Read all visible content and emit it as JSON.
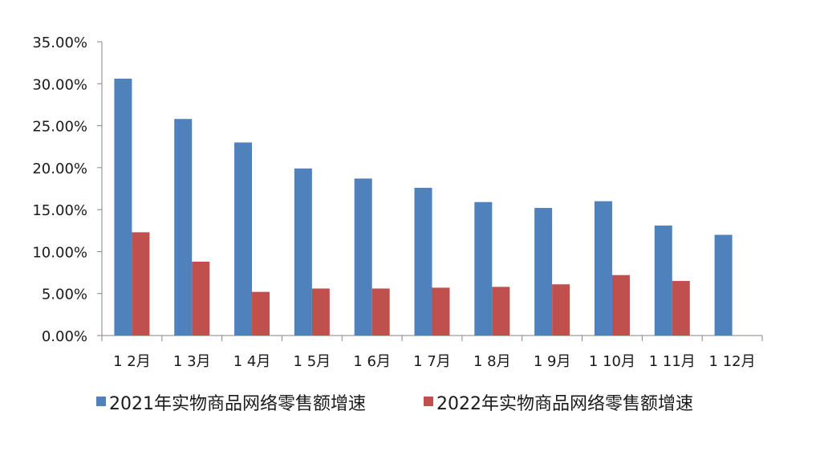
{
  "chart_data": {
    "type": "bar",
    "categories": [
      "1 2月",
      "1 3月",
      "1 4月",
      "1 5月",
      "1 6月",
      "1 7月",
      "1 8月",
      "1 9月",
      "1 10月",
      "1 11月",
      "1 12月"
    ],
    "series": [
      {
        "name": "2021年实物商品网络零售额增速",
        "color": "#4f81bd",
        "values": [
          30.6,
          25.8,
          23.0,
          19.9,
          18.7,
          17.6,
          15.9,
          15.2,
          16.0,
          13.1,
          12.0
        ]
      },
      {
        "name": "2022年实物商品网络零售额增速",
        "color": "#c0504d",
        "values": [
          12.3,
          8.8,
          5.2,
          5.6,
          5.6,
          5.7,
          5.8,
          6.1,
          7.2,
          6.5,
          null
        ]
      }
    ],
    "y_ticks": [
      "0.00%",
      "5.00%",
      "10.00%",
      "15.00%",
      "20.00%",
      "25.00%",
      "30.00%",
      "35.00%"
    ],
    "ylim": [
      0,
      35
    ],
    "title": "",
    "xlabel": "",
    "ylabel": "",
    "grid": false,
    "legend": "bottom"
  }
}
